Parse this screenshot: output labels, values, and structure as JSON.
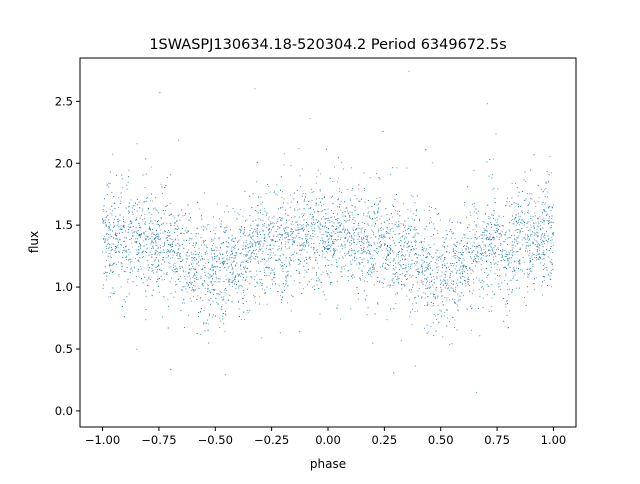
{
  "chart_data": {
    "type": "scatter",
    "title": "1SWASPJ130634.18-520304.2 Period 6349672.5s",
    "xlabel": "phase",
    "ylabel": "flux",
    "xlim": [
      -1.1,
      1.1
    ],
    "ylim": [
      -0.13,
      2.85
    ],
    "grid": false,
    "legend": "none",
    "marker_color": "#1f77b4",
    "x_ticks": [
      -1.0,
      -0.75,
      -0.5,
      -0.25,
      0.0,
      0.25,
      0.5,
      0.75,
      1.0
    ],
    "x_tick_labels": [
      "−1.00",
      "−0.75",
      "−0.50",
      "−0.25",
      "0.00",
      "0.25",
      "0.50",
      "0.75",
      "1.00"
    ],
    "y_ticks": [
      0.0,
      0.5,
      1.0,
      1.5,
      2.0,
      2.5
    ],
    "y_tick_labels": [
      "0.0",
      "0.5",
      "1.0",
      "1.5",
      "2.0",
      "2.5"
    ],
    "series_x_range": [
      -1.0,
      1.0
    ],
    "series_profile": {
      "phase": [
        -1.0,
        -0.75,
        -0.5,
        -0.25,
        0.0,
        0.25,
        0.5,
        0.75,
        1.0
      ],
      "median_flux": [
        1.4,
        1.35,
        1.12,
        1.35,
        1.42,
        1.33,
        1.12,
        1.33,
        1.4
      ]
    },
    "series_flux_range": [
      0.0,
      2.75
    ]
  }
}
